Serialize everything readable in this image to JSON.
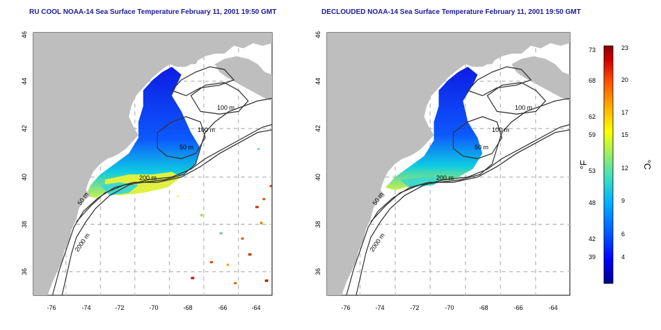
{
  "panels": [
    {
      "title": "RU COOL NOAA-14 Sea Surface Temperature February 11, 2001 19:50 GMT",
      "contour_labels": [
        "100 m",
        "100 m",
        "50 m",
        "200 m",
        "50 m",
        "2000 m"
      ]
    },
    {
      "title": "DECLOUDED NOAA-14 Sea Surface Temperature February 11, 2001 19:50 GMT",
      "contour_labels": [
        "100 m",
        "100 m",
        "50 m",
        "200 m",
        "50 m",
        "2000 m"
      ]
    }
  ],
  "axes": {
    "x_ticks": [
      "-76",
      "-74",
      "-72",
      "-70",
      "-68",
      "-66",
      "-64"
    ],
    "y_ticks": [
      "36",
      "38",
      "40",
      "42",
      "44",
      "46"
    ]
  },
  "colorbar": {
    "fahrenheit_label": "°F",
    "celsius_label": "°C",
    "fahrenheit_ticks": [
      "73",
      "68",
      "62",
      "59",
      "53",
      "48",
      "42",
      "39"
    ],
    "celsius_ticks": [
      "23",
      "20",
      "17",
      "15",
      "12",
      "9",
      "6",
      "4"
    ],
    "colors": [
      "#00008b",
      "#0000ff",
      "#0060ff",
      "#00b0ff",
      "#40e0c0",
      "#a0f060",
      "#ffff00",
      "#ffb000",
      "#ff5000",
      "#d00000",
      "#8b0000"
    ]
  },
  "colors": {
    "land": "#bebebe",
    "grid": "#bdbdbd",
    "title": "#1a1a9a"
  }
}
